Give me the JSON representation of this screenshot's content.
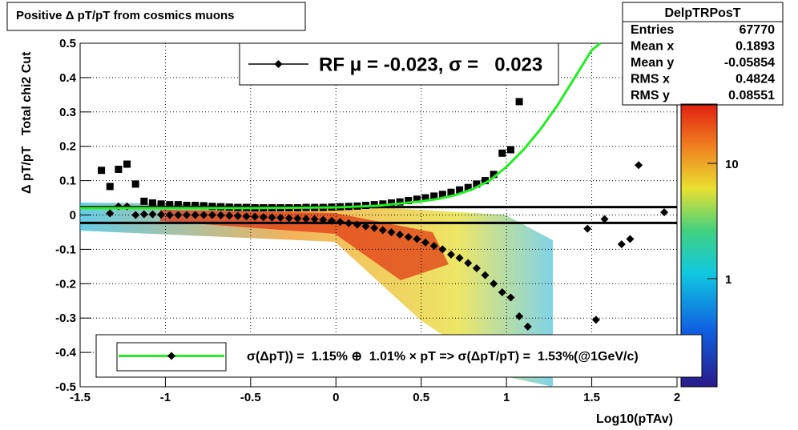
{
  "chart_data": {
    "type": "scatter",
    "title": "Positive Δ pT/pT from cosmics muons",
    "x_label": "Log10(pTAv)",
    "y_label": "Δ pT/pT   Total chi2 Cut",
    "xlim": [
      -1.5,
      2
    ],
    "xticks": [
      -1.5,
      -1,
      -0.5,
      0,
      0.5,
      1,
      1.5,
      2
    ],
    "ylim": [
      -0.5,
      0.5
    ],
    "yticks": [
      -0.5,
      -0.4,
      -0.3,
      -0.2,
      -0.1,
      0,
      0.1,
      0.2,
      0.3,
      0.4,
      0.5
    ],
    "grid": true,
    "zlim": [
      0.115,
      32.7
    ],
    "zticks": [
      1,
      10
    ],
    "zlog": true,
    "hlines": [
      0.023,
      -0.023
    ],
    "hline_color": "#000000",
    "series": [
      {
        "kind": "markers",
        "marker": "square",
        "color": "#000000",
        "x": [
          -1.375,
          -1.325,
          -1.275,
          -1.225,
          -1.175,
          -1.125,
          -1.075,
          -1.025,
          -0.975,
          -0.925,
          -0.875,
          -0.825,
          -0.775,
          -0.725,
          -0.675,
          -0.625,
          -0.575,
          -0.525,
          -0.475,
          -0.425,
          -0.375,
          -0.325,
          -0.275,
          -0.225,
          -0.175,
          -0.125,
          -0.075,
          -0.025,
          0.025,
          0.075,
          0.125,
          0.175,
          0.225,
          0.275,
          0.325,
          0.375,
          0.425,
          0.475,
          0.525,
          0.575,
          0.625,
          0.675,
          0.725,
          0.775,
          0.825,
          0.875,
          0.925,
          0.975,
          1.025,
          1.075
        ],
        "values": [
          0.13,
          0.083,
          0.133,
          0.148,
          0.09,
          0.04,
          0.035,
          0.032,
          0.03,
          0.03,
          0.028,
          0.028,
          0.027,
          0.025,
          0.024,
          0.023,
          0.022,
          0.022,
          0.021,
          0.021,
          0.021,
          0.021,
          0.021,
          0.021,
          0.022,
          0.022,
          0.022,
          0.023,
          0.024,
          0.025,
          0.026,
          0.028,
          0.03,
          0.032,
          0.035,
          0.038,
          0.042,
          0.046,
          0.05,
          0.055,
          0.06,
          0.066,
          0.073,
          0.08,
          0.09,
          0.1,
          0.118,
          0.18,
          0.19,
          0.33
        ]
      },
      {
        "kind": "markers",
        "marker": "diamond",
        "color": "#000000",
        "x": [
          -1.325,
          -1.275,
          -1.225,
          -1.175,
          -1.125,
          -1.075,
          -1.025,
          -0.975,
          -0.925,
          -0.875,
          -0.825,
          -0.775,
          -0.725,
          -0.675,
          -0.625,
          -0.575,
          -0.525,
          -0.475,
          -0.425,
          -0.375,
          -0.325,
          -0.275,
          -0.225,
          -0.175,
          -0.125,
          -0.075,
          -0.025,
          0.025,
          0.075,
          0.125,
          0.175,
          0.225,
          0.275,
          0.325,
          0.375,
          0.425,
          0.475,
          0.525,
          0.575,
          0.625,
          0.675,
          0.725,
          0.775,
          0.825,
          0.875,
          0.925,
          0.975,
          1.025,
          1.075,
          1.125,
          1.475,
          1.525,
          1.575,
          1.675,
          1.725,
          1.775,
          1.925
        ],
        "values": [
          0.005,
          0.025,
          0.025,
          0,
          0.002,
          0.002,
          0.001,
          0,
          0,
          0,
          0,
          0,
          0,
          -0.001,
          -0.002,
          -0.003,
          -0.004,
          -0.005,
          -0.006,
          -0.007,
          -0.008,
          -0.009,
          -0.01,
          -0.011,
          -0.012,
          -0.014,
          -0.017,
          -0.02,
          -0.024,
          -0.028,
          -0.033,
          -0.038,
          -0.044,
          -0.05,
          -0.057,
          -0.064,
          -0.07,
          -0.08,
          -0.09,
          -0.1,
          -0.115,
          -0.125,
          -0.14,
          -0.155,
          -0.175,
          -0.2,
          -0.225,
          -0.24,
          -0.295,
          -0.325,
          -0.04,
          -0.305,
          -0.012,
          -0.085,
          -0.07,
          0.145,
          0.008
        ]
      },
      {
        "kind": "line",
        "color": "#22ee22",
        "x": [
          -1.5,
          -1,
          -0.5,
          0,
          0.25,
          0.5,
          0.6,
          0.7,
          0.8,
          0.9,
          1,
          1.1,
          1.2,
          1.3,
          1.4,
          1.5,
          1.55
        ],
        "values": [
          0.02,
          0.02,
          0.02,
          0.022,
          0.027,
          0.04,
          0.047,
          0.058,
          0.075,
          0.1,
          0.14,
          0.19,
          0.25,
          0.32,
          0.4,
          0.48,
          0.5
        ]
      }
    ],
    "legends": [
      {
        "text": "RF μ = -0.023, σ =   0.023",
        "line_color": "#000000",
        "marker": "diamond"
      },
      {
        "text": "σ(ΔpT)) =  1.15% ⊕  1.01% × pT => σ(ΔpT/pT) =  1.53%(@1GeV/c)",
        "line_color": "#22ee22",
        "marker": "diamond"
      }
    ],
    "stats": {
      "name": "DelpTRPosT",
      "rows": [
        {
          "label": "Entries",
          "value": 67770
        },
        {
          "label": "Mean x",
          "value": 0.1893
        },
        {
          "label": "Mean y",
          "value": -0.05854
        },
        {
          "label": "RMS x",
          "value": 0.4824
        },
        {
          "label": "RMS y",
          "value": 0.08551
        }
      ]
    }
  }
}
